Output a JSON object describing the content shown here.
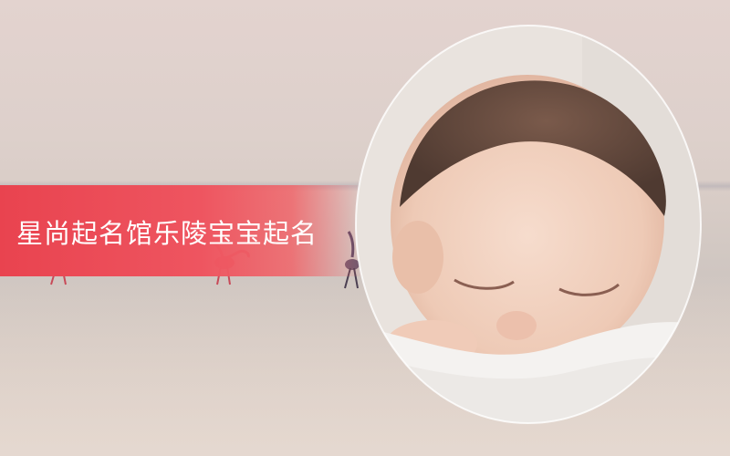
{
  "banner": {
    "title": "星尚起名馆乐陵宝宝起名"
  },
  "colors": {
    "banner_red": "#e9434f",
    "sky": "#e3d3cf",
    "flamingo": "#d8505e"
  },
  "icons": [
    "flamingo-icon",
    "baby-photo"
  ]
}
